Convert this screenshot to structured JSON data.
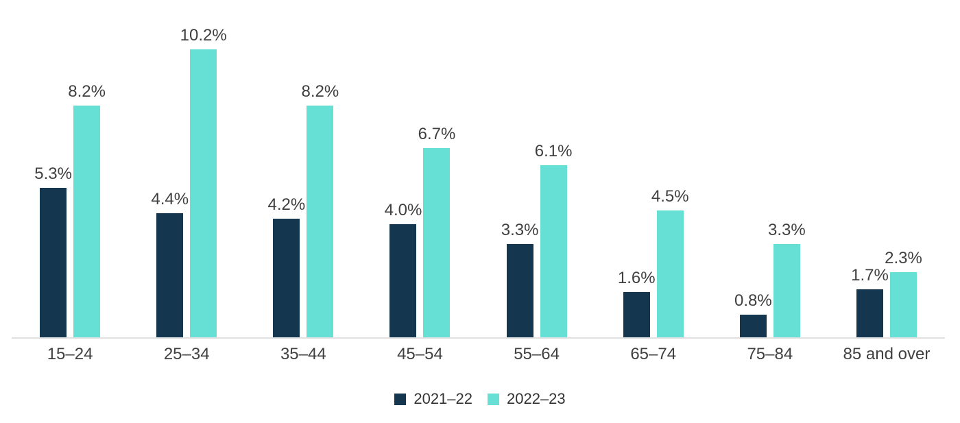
{
  "chart_data": {
    "type": "bar",
    "title": "",
    "xlabel": "",
    "ylabel": "",
    "categories": [
      "15–24",
      "25–34",
      "35–44",
      "45–54",
      "55–64",
      "65–74",
      "75–84",
      "85 and over"
    ],
    "series": [
      {
        "name": "2021–22",
        "color": "#14364F",
        "values": [
          5.3,
          4.4,
          4.2,
          4.0,
          3.3,
          1.6,
          0.8,
          1.7
        ],
        "labels": [
          "5.3%",
          "4.4%",
          "4.2%",
          "4.0%",
          "3.3%",
          "1.6%",
          "0.8%",
          "1.7%"
        ]
      },
      {
        "name": "2022–23",
        "color": "#66E0D5",
        "values": [
          8.2,
          10.2,
          8.2,
          6.7,
          6.1,
          4.5,
          3.3,
          2.3
        ],
        "labels": [
          "8.2%",
          "10.2%",
          "8.2%",
          "6.7%",
          "6.1%",
          "4.5%",
          "3.3%",
          "2.3%"
        ]
      }
    ],
    "ylim": [
      0,
      12
    ],
    "grid": false,
    "y_axis_visible": false,
    "legend_position": "bottom",
    "value_labels_shown": true
  },
  "colors": {
    "background": "#FFFFFF",
    "axis_line": "#E0E0E0",
    "value_label_text": "#404040",
    "axis_label_text": "#404040",
    "legend_text": "#333333"
  }
}
